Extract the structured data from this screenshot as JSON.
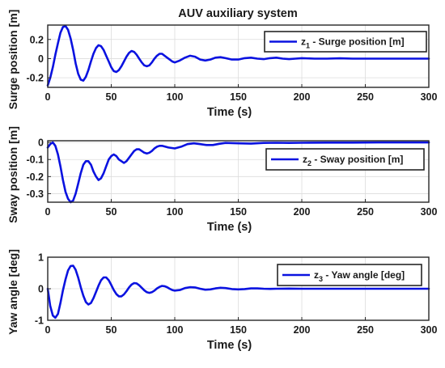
{
  "figure": {
    "title": "AUV auxiliary system"
  },
  "chart_data": [
    {
      "type": "line",
      "id": "surge",
      "ylabel": "Surge position [m]",
      "xlabel": "Time (s)",
      "xlim": [
        0,
        300
      ],
      "ylim": [
        -0.3,
        0.35
      ],
      "xticks": [
        0,
        50,
        100,
        150,
        200,
        250,
        300
      ],
      "yticks": [
        0.2,
        0,
        -0.2
      ],
      "ytick_labels": [
        "0.2",
        "0",
        "-0.2"
      ],
      "grid": true,
      "legend_position": "top-right",
      "color": "#0a12e0",
      "legend": {
        "main": "z",
        "sub": "1",
        "rest": " - Surge position [m]"
      },
      "series": [
        {
          "x": [
            0,
            2,
            4,
            6,
            8,
            10,
            12,
            14,
            16,
            18,
            20,
            22,
            24,
            26,
            28,
            30,
            32,
            34,
            36,
            38,
            40,
            42,
            44,
            46,
            48,
            50,
            52,
            54,
            56,
            58,
            60,
            62,
            64,
            66,
            68,
            70,
            72,
            74,
            76,
            78,
            80,
            82,
            84,
            86,
            88,
            90,
            92,
            94,
            96,
            98,
            100,
            104,
            108,
            112,
            116,
            120,
            124,
            128,
            132,
            136,
            140,
            145,
            150,
            155,
            160,
            165,
            170,
            175,
            180,
            185,
            190,
            195,
            200,
            210,
            220,
            230,
            240,
            250,
            260,
            270,
            280,
            290,
            300
          ],
          "y": [
            -0.28,
            -0.2,
            -0.09,
            0.04,
            0.16,
            0.27,
            0.33,
            0.34,
            0.3,
            0.21,
            0.09,
            -0.05,
            -0.16,
            -0.22,
            -0.23,
            -0.19,
            -0.12,
            -0.03,
            0.05,
            0.11,
            0.14,
            0.13,
            0.09,
            0.03,
            -0.03,
            -0.09,
            -0.13,
            -0.14,
            -0.12,
            -0.08,
            -0.03,
            0.02,
            0.06,
            0.08,
            0.07,
            0.04,
            0.0,
            -0.04,
            -0.07,
            -0.08,
            -0.07,
            -0.04,
            0.0,
            0.03,
            0.05,
            0.05,
            0.03,
            0.01,
            -0.01,
            -0.03,
            -0.04,
            -0.02,
            0.01,
            0.03,
            0.02,
            -0.01,
            -0.02,
            -0.01,
            0.01,
            0.015,
            0.005,
            -0.01,
            -0.01,
            0.005,
            0.01,
            0.0,
            -0.005,
            0.005,
            0.01,
            0.0,
            -0.005,
            0.0,
            0.005,
            0.0,
            0.0,
            0.003,
            0.0,
            0.0,
            0.0,
            0.0,
            0.0,
            0.0,
            0.0
          ]
        }
      ]
    },
    {
      "type": "line",
      "id": "sway",
      "ylabel": "Sway position [m]",
      "xlabel": "Time (s)",
      "xlim": [
        0,
        300
      ],
      "ylim": [
        -0.35,
        0.01
      ],
      "xticks": [
        0,
        50,
        100,
        150,
        200,
        250,
        300
      ],
      "yticks": [
        0,
        -0.1,
        -0.2,
        -0.3
      ],
      "ytick_labels": [
        "0",
        "-0.1",
        "-0.2",
        "-0.3"
      ],
      "grid": true,
      "legend_position": "right",
      "color": "#0a12e0",
      "legend": {
        "main": "z",
        "sub": "2",
        "rest": " - Sway position [m]"
      },
      "series": [
        {
          "x": [
            0,
            2,
            4,
            6,
            8,
            10,
            12,
            14,
            16,
            18,
            20,
            22,
            24,
            26,
            28,
            30,
            32,
            34,
            36,
            38,
            40,
            42,
            44,
            46,
            48,
            50,
            52,
            54,
            56,
            58,
            60,
            62,
            64,
            66,
            68,
            70,
            72,
            74,
            76,
            78,
            80,
            82,
            84,
            86,
            88,
            90,
            95,
            100,
            105,
            110,
            115,
            120,
            125,
            130,
            135,
            140,
            150,
            160,
            170,
            180,
            190,
            200,
            220,
            240,
            260,
            280,
            300
          ],
          "y": [
            -0.03,
            -0.01,
            0.0,
            -0.02,
            -0.07,
            -0.14,
            -0.22,
            -0.29,
            -0.33,
            -0.35,
            -0.34,
            -0.3,
            -0.24,
            -0.18,
            -0.13,
            -0.11,
            -0.11,
            -0.13,
            -0.17,
            -0.2,
            -0.22,
            -0.21,
            -0.18,
            -0.14,
            -0.1,
            -0.08,
            -0.07,
            -0.08,
            -0.1,
            -0.11,
            -0.12,
            -0.11,
            -0.09,
            -0.07,
            -0.05,
            -0.04,
            -0.04,
            -0.05,
            -0.06,
            -0.065,
            -0.06,
            -0.05,
            -0.035,
            -0.025,
            -0.02,
            -0.02,
            -0.03,
            -0.035,
            -0.025,
            -0.01,
            -0.005,
            -0.01,
            -0.015,
            -0.015,
            -0.008,
            -0.003,
            -0.005,
            -0.007,
            -0.003,
            -0.002,
            -0.003,
            -0.002,
            -0.001,
            -0.001,
            0.0,
            0.0,
            0.0
          ]
        }
      ]
    },
    {
      "type": "line",
      "id": "yaw",
      "ylabel": "Yaw angle [deg]",
      "xlabel": "Time (s)",
      "xlim": [
        0,
        300
      ],
      "ylim": [
        -1,
        1
      ],
      "xticks": [
        0,
        50,
        100,
        150,
        200,
        250,
        300
      ],
      "yticks": [
        1,
        0,
        -1
      ],
      "ytick_labels": [
        "1",
        "0",
        "-1"
      ],
      "grid": true,
      "legend_position": "top-right",
      "color": "#0a12e0",
      "legend": {
        "main": "z",
        "sub": "3",
        "rest": " - Yaw angle [deg]"
      },
      "series": [
        {
          "x": [
            0,
            2,
            4,
            6,
            8,
            10,
            12,
            14,
            16,
            18,
            20,
            22,
            24,
            26,
            28,
            30,
            32,
            34,
            36,
            38,
            40,
            42,
            44,
            46,
            48,
            50,
            52,
            54,
            56,
            58,
            60,
            62,
            64,
            66,
            68,
            70,
            72,
            74,
            76,
            78,
            80,
            82,
            84,
            86,
            88,
            90,
            92,
            94,
            96,
            98,
            100,
            104,
            108,
            112,
            116,
            120,
            124,
            128,
            132,
            136,
            140,
            145,
            150,
            155,
            160,
            165,
            170,
            175,
            180,
            190,
            200,
            210,
            220,
            240,
            260,
            280,
            300
          ],
          "y": [
            0.0,
            -0.55,
            -0.85,
            -0.92,
            -0.8,
            -0.45,
            -0.05,
            0.3,
            0.58,
            0.72,
            0.73,
            0.6,
            0.35,
            0.05,
            -0.22,
            -0.42,
            -0.5,
            -0.45,
            -0.3,
            -0.1,
            0.1,
            0.27,
            0.36,
            0.36,
            0.27,
            0.12,
            -0.04,
            -0.17,
            -0.24,
            -0.24,
            -0.18,
            -0.08,
            0.04,
            0.13,
            0.18,
            0.17,
            0.11,
            0.03,
            -0.05,
            -0.11,
            -0.13,
            -0.11,
            -0.06,
            0.01,
            0.06,
            0.09,
            0.08,
            0.05,
            0.0,
            -0.04,
            -0.06,
            -0.04,
            0.02,
            0.05,
            0.04,
            0.0,
            -0.03,
            -0.02,
            0.01,
            0.03,
            0.02,
            -0.01,
            -0.02,
            -0.01,
            0.01,
            0.01,
            0.0,
            -0.005,
            0.0,
            0.005,
            0.0,
            0.0,
            0.0,
            0.0,
            0.0,
            0.0,
            0.0
          ]
        }
      ]
    }
  ]
}
